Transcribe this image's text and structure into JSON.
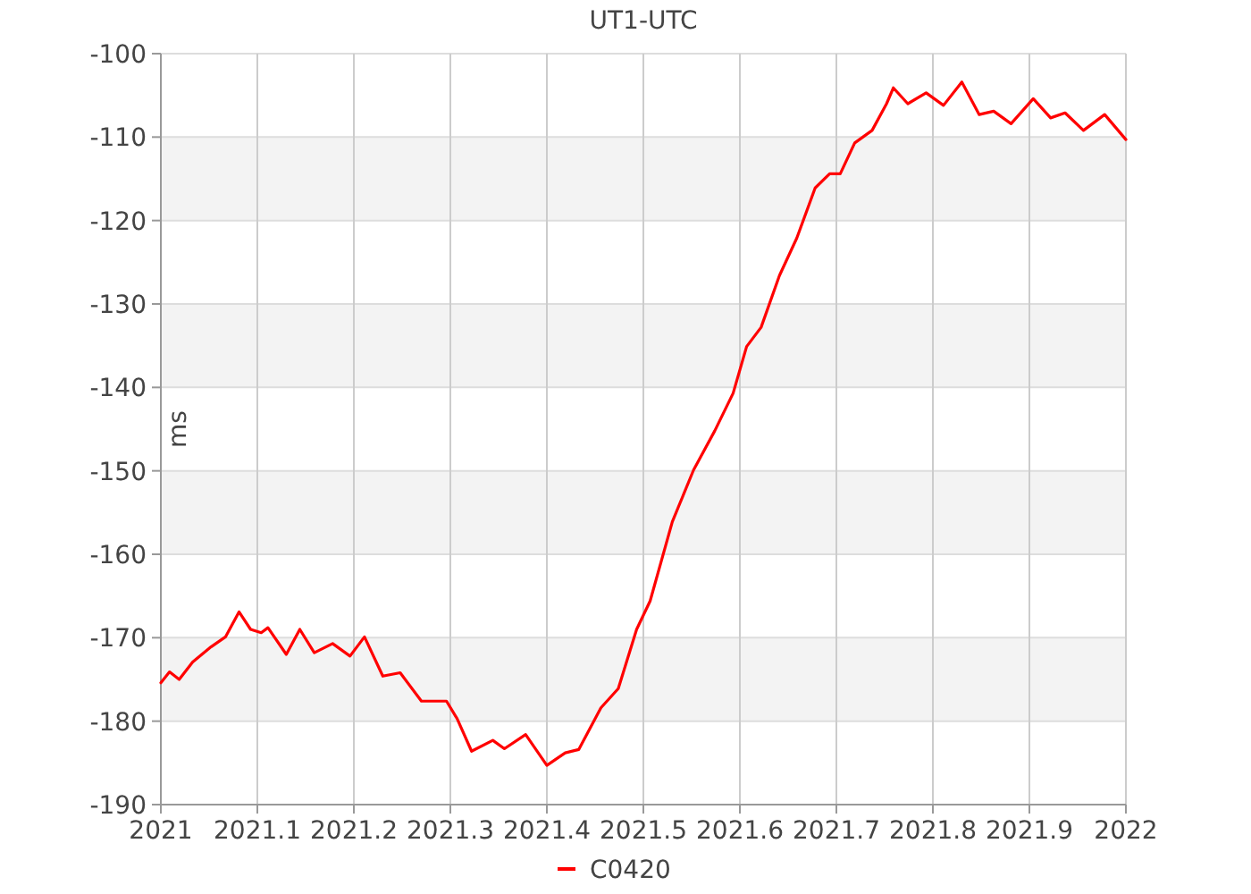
{
  "chart_data": {
    "type": "line",
    "title": "UT1-UTC",
    "ylabel": "ms",
    "xlim": [
      2021,
      2022
    ],
    "xticks": [
      2021,
      2021.1,
      2021.2,
      2021.3,
      2021.4,
      2021.5,
      2021.6,
      2021.7,
      2021.8,
      2021.9,
      2022
    ],
    "ylim": [
      -190,
      -100
    ],
    "yticks": [
      -190,
      -180,
      -170,
      -160,
      -150,
      -140,
      -130,
      -120,
      -110,
      -100
    ],
    "grid": true,
    "legend": "bottom",
    "marker": "none",
    "line_style": "solid",
    "x": [
      2021,
      2021.009,
      2021.019,
      2021.033,
      2021.052,
      2021.067,
      2021.081,
      2021.093,
      2021.104,
      2021.111,
      2021.13,
      2021.144,
      2021.159,
      2021.178,
      2021.196,
      2021.211,
      2021.23,
      2021.248,
      2021.27,
      2021.296,
      2021.307,
      2021.322,
      2021.344,
      2021.356,
      2021.378,
      2021.4,
      2021.419,
      2021.433,
      2021.456,
      2021.474,
      2021.493,
      2021.507,
      2021.53,
      2021.552,
      2021.574,
      2021.593,
      2021.607,
      2021.622,
      2021.641,
      2021.659,
      2021.678,
      2021.693,
      2021.704,
      2021.719,
      2021.737,
      2021.752,
      2021.759,
      2021.774,
      2021.793,
      2021.811,
      2021.83,
      2021.848,
      2021.863,
      2021.881,
      2021.904,
      2021.922,
      2021.937,
      2021.956,
      2021.978,
      2022
    ],
    "series": [
      {
        "name": "C0420",
        "color": "#ff0000",
        "values": [
          -175.4,
          -174.1,
          -175,
          -172.9,
          -171.1,
          -169.9,
          -166.9,
          -169,
          -169.4,
          -168.8,
          -172,
          -169,
          -171.8,
          -170.7,
          -172.2,
          -169.9,
          -174.6,
          -174.2,
          -177.6,
          -177.6,
          -179.7,
          -183.6,
          -182.3,
          -183.3,
          -181.6,
          -185.3,
          -183.8,
          -183.4,
          -178.4,
          -176.1,
          -169,
          -165.6,
          -156.1,
          -149.9,
          -145.2,
          -140.7,
          -135.1,
          -132.8,
          -126.6,
          -122.1,
          -116.1,
          -114.4,
          -114.4,
          -110.7,
          -109.2,
          -106,
          -104.1,
          -106,
          -104.7,
          -106.2,
          -103.4,
          -107.3,
          -106.9,
          -108.4,
          -105.4,
          -107.7,
          -107.1,
          -109.2,
          -107.3,
          -110.3
        ]
      }
    ]
  }
}
